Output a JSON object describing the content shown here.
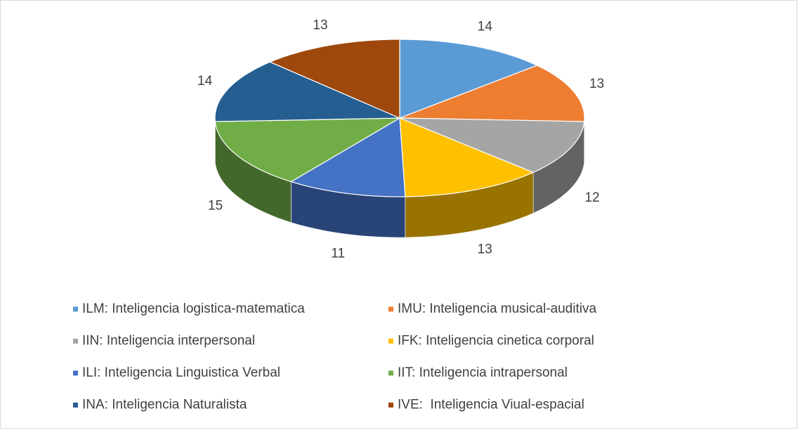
{
  "chart_data": {
    "type": "pie",
    "categories": [
      "ILM: Inteligencia logistica-matematica",
      "IMU: Inteligencia musical-auditiva",
      "IIN: Inteligencia interpersonal",
      "IFK: Inteligencia cinetica corporal",
      "ILI: Inteligencia Linguistica Verbal",
      "IIT: Inteligencia intrapersonal",
      "INA: Inteligencia Naturalista",
      "IVE:  Inteligencia Viual-espacial"
    ],
    "values": [
      14,
      13,
      12,
      13,
      11,
      15,
      14,
      13
    ],
    "colors": [
      "#5b9bd5",
      "#ed7d31",
      "#a5a5a5",
      "#ffc000",
      "#4472c4",
      "#70ad47",
      "#255e91",
      "#9e480e"
    ],
    "legend": "bottom"
  }
}
